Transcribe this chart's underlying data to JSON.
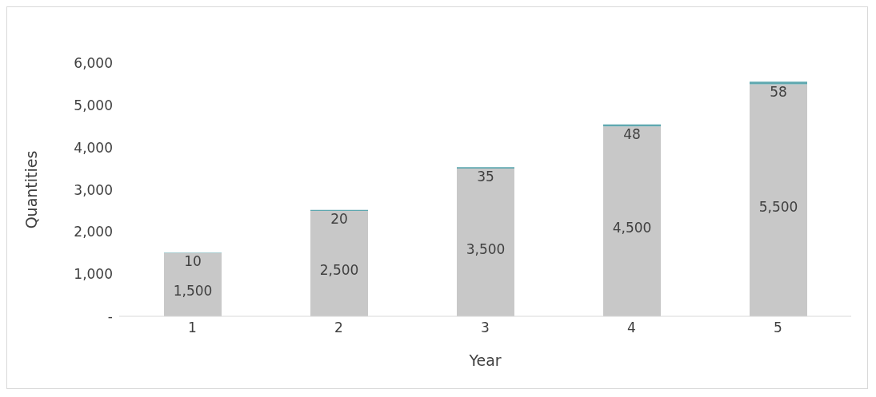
{
  "chart_data": {
    "type": "bar",
    "stacked": true,
    "xlabel": "Year",
    "ylabel": "Quantities",
    "categories": [
      "1",
      "2",
      "3",
      "4",
      "5"
    ],
    "series": [
      {
        "color": "#c8c8c8",
        "values": [
          1500,
          2500,
          3500,
          4500,
          5500
        ],
        "value_labels": [
          "1,500",
          "2,500",
          "3,500",
          "4,500",
          "5,500"
        ]
      },
      {
        "color": "#5fa8b0",
        "values": [
          10,
          20,
          35,
          48,
          58
        ],
        "value_labels": [
          "10",
          "20",
          "35",
          "48",
          "58"
        ]
      }
    ],
    "ylim": [
      0,
      6000
    ],
    "yticks": [
      {
        "value": 0,
        "label": "-"
      },
      {
        "value": 1000,
        "label": "1,000"
      },
      {
        "value": 2000,
        "label": "2,000"
      },
      {
        "value": 3000,
        "label": "3,000"
      },
      {
        "value": 4000,
        "label": "4,000"
      },
      {
        "value": 5000,
        "label": "5,000"
      },
      {
        "value": 6000,
        "label": "6,000"
      }
    ],
    "grid": false,
    "legend": false
  }
}
